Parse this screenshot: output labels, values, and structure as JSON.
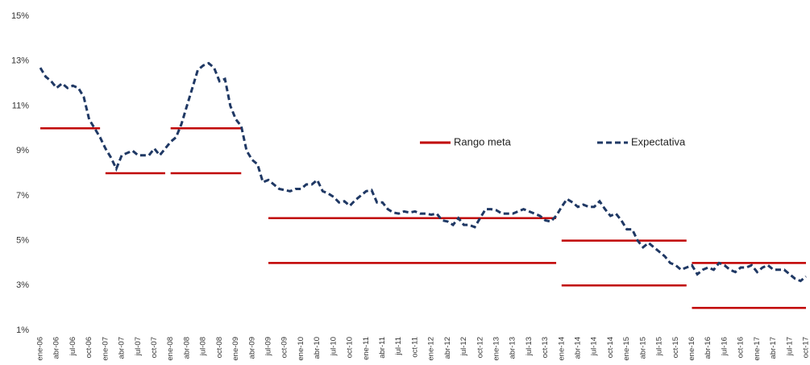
{
  "chart_data": {
    "type": "line",
    "categories": [
      "ene-06",
      null,
      null,
      "abr-06",
      null,
      null,
      "jul-06",
      null,
      null,
      "oct-06",
      null,
      null,
      "ene-07",
      null,
      null,
      "abr-07",
      null,
      null,
      "jul-07",
      null,
      null,
      "oct-07",
      null,
      null,
      "ene-08",
      null,
      null,
      "abr-08",
      null,
      null,
      "jul-08",
      null,
      null,
      "oct-08",
      null,
      null,
      "ene-09",
      null,
      null,
      "abr-09",
      null,
      null,
      "jul-09",
      null,
      null,
      "oct-09",
      null,
      null,
      "ene-10",
      null,
      null,
      "abr-10",
      null,
      null,
      "jul-10",
      null,
      null,
      "oct-10",
      null,
      null,
      "ene-11",
      null,
      null,
      "abr-11",
      null,
      null,
      "jul-11",
      null,
      null,
      "oct-11",
      null,
      null,
      "ene-12",
      null,
      null,
      "abr-12",
      null,
      null,
      "jul-12",
      null,
      null,
      "oct-12",
      null,
      null,
      "ene-13",
      null,
      null,
      "abr-13",
      null,
      null,
      "jul-13",
      null,
      null,
      "oct-13",
      null,
      null,
      "ene-14",
      null,
      null,
      "abr-14",
      null,
      null,
      "jul-14",
      null,
      null,
      "oct-14",
      null,
      null,
      "ene-15",
      null,
      null,
      "abr-15",
      null,
      null,
      "jul-15",
      null,
      null,
      "oct-15",
      null,
      null,
      "ene-16",
      null,
      null,
      "abr-16",
      null,
      null,
      "jul-16",
      null,
      null,
      "oct-16",
      null,
      null,
      "ene-17",
      null,
      null,
      "abr-17",
      null,
      null,
      "jul-17",
      null,
      null,
      "oct-17"
    ],
    "series": [
      {
        "name": "Rango meta",
        "color": "#c00000",
        "style": "range",
        "values": [
          10,
          10,
          10,
          10,
          10,
          10,
          10,
          10,
          10,
          10,
          10,
          10,
          8,
          8,
          8,
          8,
          8,
          8,
          8,
          8,
          8,
          8,
          8,
          8,
          10,
          10,
          10,
          10,
          10,
          10,
          10,
          10,
          10,
          10,
          10,
          10,
          10,
          10,
          null,
          null,
          null,
          null,
          6,
          6,
          6,
          6,
          6,
          6,
          6,
          6,
          6,
          6,
          6,
          6,
          6,
          6,
          6,
          6,
          6,
          6,
          6,
          6,
          6,
          6,
          6,
          6,
          6,
          6,
          6,
          6,
          6,
          6,
          6,
          6,
          6,
          6,
          6,
          6,
          6,
          6,
          6,
          6,
          6,
          6,
          6,
          6,
          6,
          6,
          6,
          6,
          6,
          6,
          6,
          6,
          6,
          6,
          5,
          5,
          5,
          5,
          5,
          5,
          5,
          5,
          5,
          5,
          5,
          5,
          5,
          5,
          5,
          5,
          5,
          5,
          5,
          5,
          5,
          5,
          5,
          5,
          4,
          4,
          4,
          4,
          4,
          4,
          4,
          4,
          4,
          4,
          4,
          4,
          4,
          4,
          4,
          4,
          4,
          4,
          4,
          4,
          4,
          4
        ],
        "lower_values": [
          null,
          null,
          null,
          null,
          null,
          null,
          null,
          null,
          null,
          null,
          null,
          null,
          null,
          null,
          null,
          null,
          null,
          null,
          null,
          null,
          null,
          null,
          null,
          null,
          8,
          8,
          8,
          8,
          8,
          8,
          8,
          8,
          8,
          8,
          8,
          8,
          8,
          8,
          null,
          null,
          null,
          null,
          4,
          4,
          4,
          4,
          4,
          4,
          4,
          4,
          4,
          4,
          4,
          4,
          4,
          4,
          4,
          4,
          4,
          4,
          4,
          4,
          4,
          4,
          4,
          4,
          4,
          4,
          4,
          4,
          4,
          4,
          4,
          4,
          4,
          4,
          4,
          4,
          4,
          4,
          4,
          4,
          4,
          4,
          4,
          4,
          4,
          4,
          4,
          4,
          4,
          4,
          4,
          4,
          4,
          4,
          3,
          3,
          3,
          3,
          3,
          3,
          3,
          3,
          3,
          3,
          3,
          3,
          3,
          3,
          3,
          3,
          3,
          3,
          3,
          3,
          3,
          3,
          3,
          3,
          2,
          2,
          2,
          2,
          2,
          2,
          2,
          2,
          2,
          2,
          2,
          2,
          2,
          2,
          2,
          2,
          2,
          2,
          2,
          2,
          2,
          2
        ]
      },
      {
        "name": "Expectativa",
        "color": "#1f3864",
        "style": "dashed",
        "values": [
          12.7,
          12.3,
          12.1,
          11.8,
          12.0,
          11.8,
          11.9,
          11.8,
          11.4,
          10.4,
          10.0,
          9.6,
          9.1,
          8.7,
          8.2,
          8.8,
          8.9,
          9.0,
          8.8,
          8.8,
          8.8,
          9.1,
          8.8,
          9.1,
          9.4,
          9.6,
          10.2,
          11.0,
          11.8,
          12.6,
          12.8,
          12.9,
          12.7,
          12.1,
          12.2,
          11.0,
          10.4,
          10.1,
          9.0,
          8.6,
          8.4,
          7.6,
          7.7,
          7.5,
          7.3,
          7.25,
          7.2,
          7.3,
          7.3,
          7.5,
          7.5,
          7.7,
          7.2,
          7.1,
          6.95,
          6.7,
          6.75,
          6.55,
          6.8,
          7.0,
          7.2,
          7.25,
          6.7,
          6.7,
          6.4,
          6.25,
          6.2,
          6.3,
          6.25,
          6.3,
          6.2,
          6.2,
          6.15,
          6.2,
          5.9,
          5.85,
          5.7,
          6.0,
          5.7,
          5.7,
          5.6,
          6.0,
          6.4,
          6.4,
          6.35,
          6.2,
          6.2,
          6.2,
          6.3,
          6.4,
          6.3,
          6.2,
          6.1,
          5.9,
          5.85,
          6.1,
          6.5,
          6.85,
          6.7,
          6.5,
          6.6,
          6.5,
          6.5,
          6.75,
          6.4,
          6.1,
          6.2,
          5.9,
          5.5,
          5.5,
          5.0,
          4.7,
          4.9,
          4.7,
          4.5,
          4.3,
          4.0,
          3.9,
          3.7,
          3.8,
          3.9,
          3.5,
          3.7,
          3.8,
          3.7,
          4.0,
          3.9,
          3.7,
          3.6,
          3.8,
          3.8,
          3.9,
          3.6,
          3.8,
          3.9,
          3.7,
          3.7,
          3.7,
          3.5,
          3.3,
          3.2,
          3.4
        ]
      }
    ],
    "ylim": [
      1,
      15
    ],
    "yticks": [
      {
        "value": 1,
        "label": "1%"
      },
      {
        "value": 3,
        "label": "3%"
      },
      {
        "value": 5,
        "label": "5%"
      },
      {
        "value": 7,
        "label": "7%"
      },
      {
        "value": 9,
        "label": "9%"
      },
      {
        "value": 11,
        "label": "11%"
      },
      {
        "value": 13,
        "label": "13%"
      },
      {
        "value": 15,
        "label": "15%"
      }
    ],
    "grid": false
  }
}
